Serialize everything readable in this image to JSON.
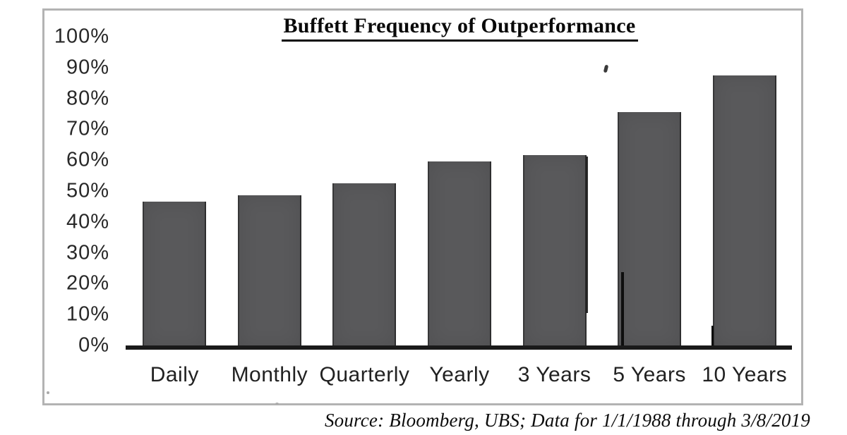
{
  "title": "Buffett Frequency of Outperformance",
  "source_note": "Source: Bloomberg, UBS; Data for 1/1/1988 through 3/8/2019",
  "chart_data": {
    "type": "bar",
    "title": "Buffett Frequency of Outperformance",
    "categories": [
      "Daily",
      "Monthly",
      "Quarterly",
      "Yearly",
      "3 Years",
      "5 Years",
      "10 Years"
    ],
    "values": [
      47,
      49,
      53,
      60,
      62,
      76,
      88
    ],
    "unit": "%",
    "xlabel": "",
    "ylabel": "",
    "ylim": [
      0,
      100
    ],
    "ytick_step": 10,
    "ytick_labels_top_to_bottom": [
      "100%",
      "90%",
      "80%",
      "70%",
      "60%",
      "50%",
      "40%",
      "30%",
      "20%",
      "10%",
      "0%"
    ],
    "grid": false,
    "legend": null,
    "annotation": "Source: Bloomberg, UBS; Data for 1/1/1988 through 3/8/2019",
    "bar_color": "#59595b",
    "axis_color": "#1a1a1a",
    "frame_color": "#b3b3b3",
    "background_color": "#ffffff"
  }
}
